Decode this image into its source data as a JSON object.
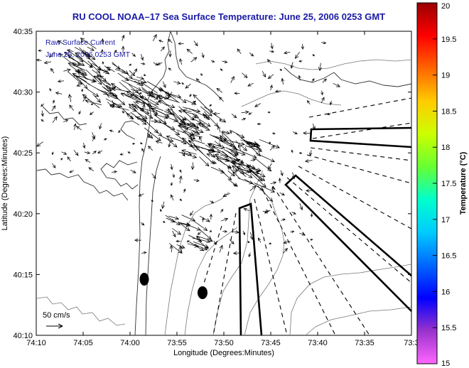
{
  "chart_data": {
    "type": "map",
    "title": "RU COOL  NOAA–17  Sea Surface Temperature:  June 25, 2006 0253 GMT",
    "annotation_lines": [
      "Raw Surface Current",
      "June 25, 2006 0253 GMT"
    ],
    "xlabel": "Longitude (Degrees:Minutes)",
    "ylabel": "Latitude (Degrees:Minutes)",
    "x_ticks": [
      "74:10",
      "74:05",
      "74:00",
      "73:55",
      "73:50",
      "73:45",
      "73:40",
      "73:35",
      "73:3"
    ],
    "y_ticks": [
      "40:35",
      "40:30",
      "40:25",
      "40:20",
      "40:15",
      "40:10"
    ],
    "scale_label": "50 cm/s",
    "colorbar": {
      "label": "Temperature (°C)",
      "ticks": [
        "20",
        "19.5",
        "19",
        "18.5",
        "18",
        "17.5",
        "17",
        "16.5",
        "16",
        "15.5",
        "15"
      ],
      "range": [
        15,
        20
      ],
      "colors": [
        "#ff66ff",
        "#9933cc",
        "#0000ff",
        "#0066ff",
        "#00ccff",
        "#00ffcc",
        "#66ff33",
        "#ccff00",
        "#ffcc00",
        "#ff6600",
        "#ff0000",
        "#990000"
      ]
    },
    "grid": false
  }
}
